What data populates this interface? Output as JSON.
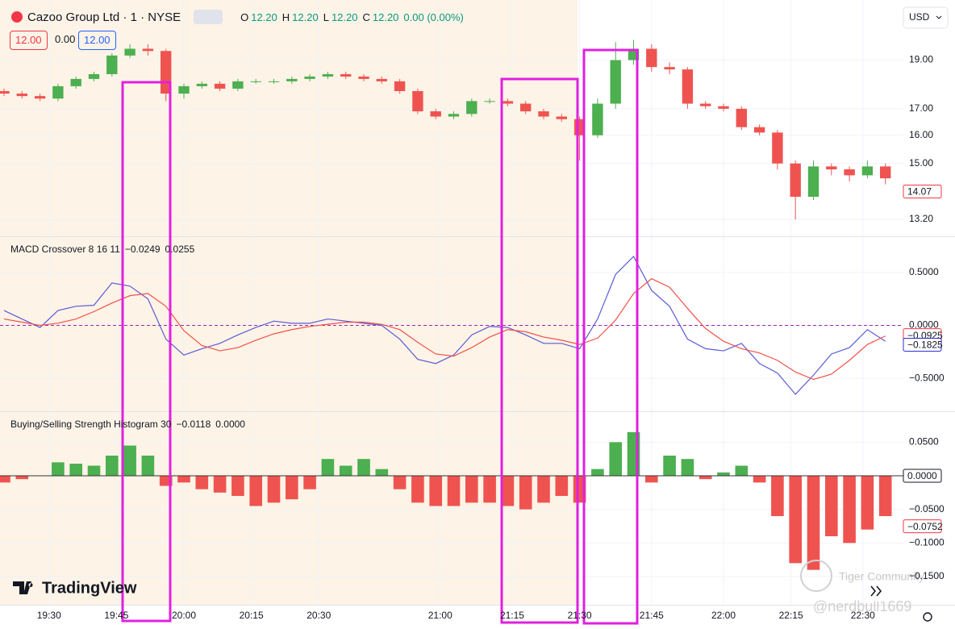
{
  "header": {
    "symbol": "Cazoo Group Ltd · 1 · NYSE",
    "o_key": "O",
    "o_val": "12.20",
    "h_key": "H",
    "h_val": "12.20",
    "l_key": "L",
    "l_val": "12.20",
    "c_key": "C",
    "c_val": "12.20",
    "change": "0.00 (0.00%)",
    "bid": "12.00",
    "spread": "0.00",
    "ask": "12.00",
    "currency": "USD"
  },
  "logo": "TradingView",
  "watermarks": [
    "Tiger Community",
    "@nerdbull1669"
  ],
  "time_axis": {
    "xlim": [
      0,
      200
    ],
    "x": [
      0,
      4,
      8,
      12,
      16,
      20,
      24,
      28,
      32,
      36,
      40,
      44,
      48,
      52,
      56,
      60,
      64,
      68,
      72,
      76,
      80,
      84,
      88,
      92,
      96,
      100,
      104,
      108,
      112,
      116,
      120,
      124,
      128,
      132,
      136,
      140,
      144,
      148,
      152,
      156,
      160,
      164,
      168,
      172,
      176,
      180,
      184,
      188,
      192,
      196
    ],
    "xticks": [
      {
        "value": 10,
        "label": "19:30"
      },
      {
        "value": 25,
        "label": "19:45"
      },
      {
        "value": 40,
        "label": "20:00"
      },
      {
        "value": 55,
        "label": "20:15"
      },
      {
        "value": 70,
        "label": "20:30"
      },
      {
        "value": 97,
        "label": "21:00"
      },
      {
        "value": 113,
        "label": "21:15"
      },
      {
        "value": 128,
        "label": "21:30"
      },
      {
        "value": 144,
        "label": "21:45"
      },
      {
        "value": 160,
        "label": "22:00"
      },
      {
        "value": 175,
        "label": "22:15"
      },
      {
        "value": 191,
        "label": "22:30"
      }
    ]
  },
  "chart_data": [
    {
      "type": "candlestick",
      "log_scale": true,
      "up_color": "#4caf50",
      "down_color": "#ef5350",
      "ylim": [
        12.7,
        21.8
      ],
      "yticks": [
        {
          "value": 13.2,
          "label": "13.20"
        },
        {
          "value": 15,
          "label": "15.00"
        },
        {
          "value": 16,
          "label": "16.00"
        },
        {
          "value": 17,
          "label": "17.00"
        },
        {
          "value": 19,
          "label": "19.00"
        }
      ],
      "open": [
        17.7,
        17.6,
        17.5,
        17.4,
        17.9,
        18.2,
        18.4,
        19.2,
        19.5,
        19.4,
        17.6,
        17.9,
        18.0,
        17.8,
        18.1,
        18.1,
        18.1,
        18.2,
        18.3,
        18.4,
        18.3,
        18.2,
        18.1,
        17.7,
        16.9,
        16.7,
        16.8,
        17.3,
        17.3,
        17.2,
        16.9,
        16.7,
        16.6,
        16.0,
        17.2,
        19.0,
        19.5,
        18.7,
        18.6,
        17.2,
        17.1,
        17.0,
        16.3,
        16.1,
        15.0,
        13.9,
        14.9,
        14.8,
        14.6,
        14.9
      ],
      "high": [
        17.8,
        17.7,
        17.6,
        18.0,
        18.3,
        18.5,
        19.3,
        19.7,
        19.7,
        19.5,
        18.0,
        18.1,
        18.1,
        18.2,
        18.2,
        18.2,
        18.3,
        18.4,
        18.5,
        18.5,
        18.4,
        18.3,
        18.2,
        17.8,
        17.0,
        16.9,
        17.4,
        17.4,
        17.4,
        17.3,
        17.0,
        16.8,
        16.7,
        17.4,
        19.8,
        19.9,
        19.7,
        18.9,
        18.7,
        17.3,
        17.2,
        17.1,
        16.4,
        16.2,
        15.1,
        15.1,
        15.0,
        14.9,
        15.1,
        15.0
      ],
      "low": [
        17.5,
        17.4,
        17.3,
        17.3,
        17.8,
        18.1,
        18.3,
        19.1,
        19.2,
        17.3,
        17.4,
        17.8,
        17.7,
        17.7,
        18.0,
        18.0,
        18.0,
        18.1,
        18.2,
        18.2,
        18.1,
        18.0,
        17.6,
        16.8,
        16.6,
        16.6,
        16.7,
        17.2,
        17.1,
        16.8,
        16.6,
        16.5,
        15.1,
        15.9,
        17.0,
        18.8,
        18.5,
        18.4,
        17.0,
        17.0,
        16.9,
        16.2,
        16.0,
        14.8,
        13.2,
        13.8,
        14.6,
        14.4,
        14.5,
        14.3
      ],
      "close": [
        17.6,
        17.5,
        17.4,
        17.9,
        18.2,
        18.4,
        19.2,
        19.5,
        19.4,
        17.6,
        17.9,
        18.0,
        17.8,
        18.1,
        18.1,
        18.1,
        18.2,
        18.3,
        18.4,
        18.3,
        18.2,
        18.1,
        17.7,
        16.9,
        16.7,
        16.8,
        17.3,
        17.3,
        17.2,
        16.9,
        16.7,
        16.6,
        16.0,
        17.2,
        19.0,
        19.5,
        18.7,
        18.6,
        17.2,
        17.1,
        17.0,
        16.3,
        16.1,
        15.0,
        13.9,
        14.9,
        14.8,
        14.6,
        14.9,
        14.5
      ],
      "badges": [
        {
          "value": 14.07,
          "label": "14.07",
          "color": "#f23645"
        }
      ]
    },
    {
      "type": "line",
      "title": "MACD Crossover 8 16 11",
      "zero_line_color": "#9c27b0",
      "legend_values": [
        {
          "text": "−0.0249",
          "color": "#f23645"
        },
        {
          "text": "0.0255",
          "color": "#2f2fd0"
        }
      ],
      "ylim": [
        -0.81,
        0.84
      ],
      "yticks": [
        {
          "value": -0.5,
          "label": "−0.5000"
        },
        {
          "value": 0,
          "label": "0.0000"
        },
        {
          "value": 0.5,
          "label": "0.5000"
        }
      ],
      "series": [
        {
          "color": "#5b5bd6",
          "values": [
            0.14,
            0.06,
            -0.02,
            0.14,
            0.18,
            0.19,
            0.4,
            0.37,
            0.25,
            -0.13,
            -0.28,
            -0.22,
            -0.17,
            -0.09,
            -0.02,
            0.04,
            0.02,
            0.02,
            0.06,
            0.04,
            0.02,
            0,
            -0.13,
            -0.32,
            -0.36,
            -0.28,
            -0.09,
            -0.01,
            -0.02,
            -0.09,
            -0.17,
            -0.17,
            -0.22,
            0.06,
            0.48,
            0.65,
            0.33,
            0.18,
            -0.13,
            -0.22,
            -0.24,
            -0.17,
            -0.36,
            -0.45,
            -0.65,
            -0.47,
            -0.27,
            -0.21,
            -0.04,
            -0.15
          ]
        },
        {
          "color": "#f2514a",
          "values": [
            0.06,
            0.03,
            0.0,
            0.02,
            0.06,
            0.13,
            0.21,
            0.28,
            0.3,
            0.18,
            -0.05,
            -0.19,
            -0.24,
            -0.21,
            -0.14,
            -0.08,
            -0.04,
            -0.01,
            0.01,
            0.03,
            0.03,
            0.01,
            -0.04,
            -0.16,
            -0.27,
            -0.29,
            -0.21,
            -0.11,
            -0.04,
            -0.06,
            -0.11,
            -0.14,
            -0.18,
            -0.12,
            0.05,
            0.3,
            0.44,
            0.36,
            0.16,
            -0.03,
            -0.15,
            -0.22,
            -0.26,
            -0.33,
            -0.44,
            -0.51,
            -0.46,
            -0.33,
            -0.18,
            -0.1
          ]
        }
      ],
      "badges": [
        {
          "value": -0.0925,
          "label": "−0.0925",
          "color": "#f23645"
        },
        {
          "value": -0.1825,
          "label": "−0.1825",
          "color": "#2f2fd0"
        }
      ]
    },
    {
      "type": "bar",
      "title": "Buying/Selling Strength Histogram 30",
      "positive_color": "#4caf50",
      "negative_color": "#ef5350",
      "zero_line_color": "#333333",
      "legend_values": [
        {
          "text": "−0.0118",
          "color": "#f23645"
        },
        {
          "text": "0.0000",
          "color": "#131722"
        }
      ],
      "ylim": [
        -0.192,
        0.096
      ],
      "yticks": [
        {
          "value": -0.15,
          "label": "−0.1500"
        },
        {
          "value": -0.1,
          "label": "−0.1000"
        },
        {
          "value": -0.05,
          "label": "−0.0500"
        },
        {
          "value": 0,
          "label": "0.0000"
        },
        {
          "value": 0.05,
          "label": "0.0500"
        }
      ],
      "values": [
        -0.01,
        -0.005,
        0,
        0.02,
        0.018,
        0.015,
        0.03,
        0.045,
        0.03,
        -0.015,
        -0.01,
        -0.02,
        -0.025,
        -0.03,
        -0.045,
        -0.04,
        -0.035,
        -0.02,
        0.025,
        0.015,
        0.025,
        0.01,
        -0.02,
        -0.04,
        -0.045,
        -0.045,
        -0.04,
        -0.04,
        -0.045,
        -0.05,
        -0.04,
        -0.03,
        -0.04,
        0.01,
        0.05,
        0.065,
        -0.01,
        0.03,
        0.025,
        -0.005,
        0.005,
        0.015,
        -0.01,
        -0.06,
        -0.13,
        -0.14,
        -0.09,
        -0.1,
        -0.08,
        -0.06
      ],
      "badges": [
        {
          "value": 0,
          "label": "0.0000",
          "color": "#131722"
        },
        {
          "value": -0.0752,
          "label": "−0.0752",
          "color": "#f23645"
        }
      ]
    }
  ]
}
